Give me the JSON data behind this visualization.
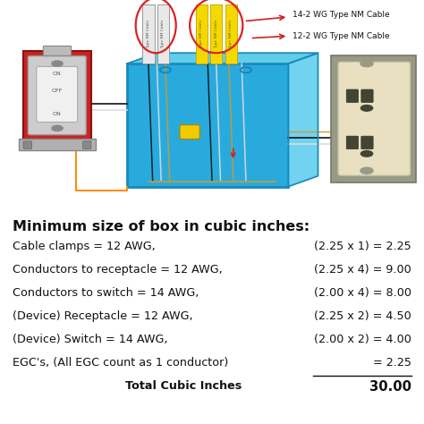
{
  "title": "Minimum size of box in cubic inches:",
  "rows": [
    {
      "left": "Cable clamps = 12 AWG,",
      "calc": "(2.25 x 1) = 2.25",
      "bold": false,
      "underline": false
    },
    {
      "left": "Conductors to receptacle = 12 AWG,",
      "calc": "(2.25 x 4) = 9.00",
      "bold": false,
      "underline": false
    },
    {
      "left": "Conductors to switch = 14 AWG,",
      "calc": "(2.00 x 4) = 8.00",
      "bold": false,
      "underline": false
    },
    {
      "left": "(Device) Receptacle = 12 AWG,",
      "calc": "(2.25 x 2) = 4.50",
      "bold": false,
      "underline": false
    },
    {
      "left": "(Device) Switch = 14 AWG,",
      "calc": "(2.00 x 2) = 4.00",
      "bold": false,
      "underline": false
    },
    {
      "left": "EGC's, (All EGC count as 1 conductor)",
      "calc": "= 2.25",
      "bold": false,
      "underline": true
    },
    {
      "left": "Total Cubic Inches",
      "calc": "30.00",
      "bold": true,
      "underline": false
    }
  ],
  "label_14": "14-2 WG Type NM Cable",
  "label_12": "12-2 WG Type NM Cable",
  "bg_color": "#ffffff",
  "text_color": "#111111",
  "title_fontsize": 11.5,
  "row_fontsize": 9.2,
  "box_color": "#29aadd",
  "box_edge_color": "#1a88bb",
  "box_side_color": "#45bbdd",
  "cable_white": "#eeeeee",
  "cable_yellow": "#f5d800",
  "switch_box_color": "#cc2222",
  "recep_face_color": "#e8e0c0",
  "recep_mount_color": "#999988"
}
